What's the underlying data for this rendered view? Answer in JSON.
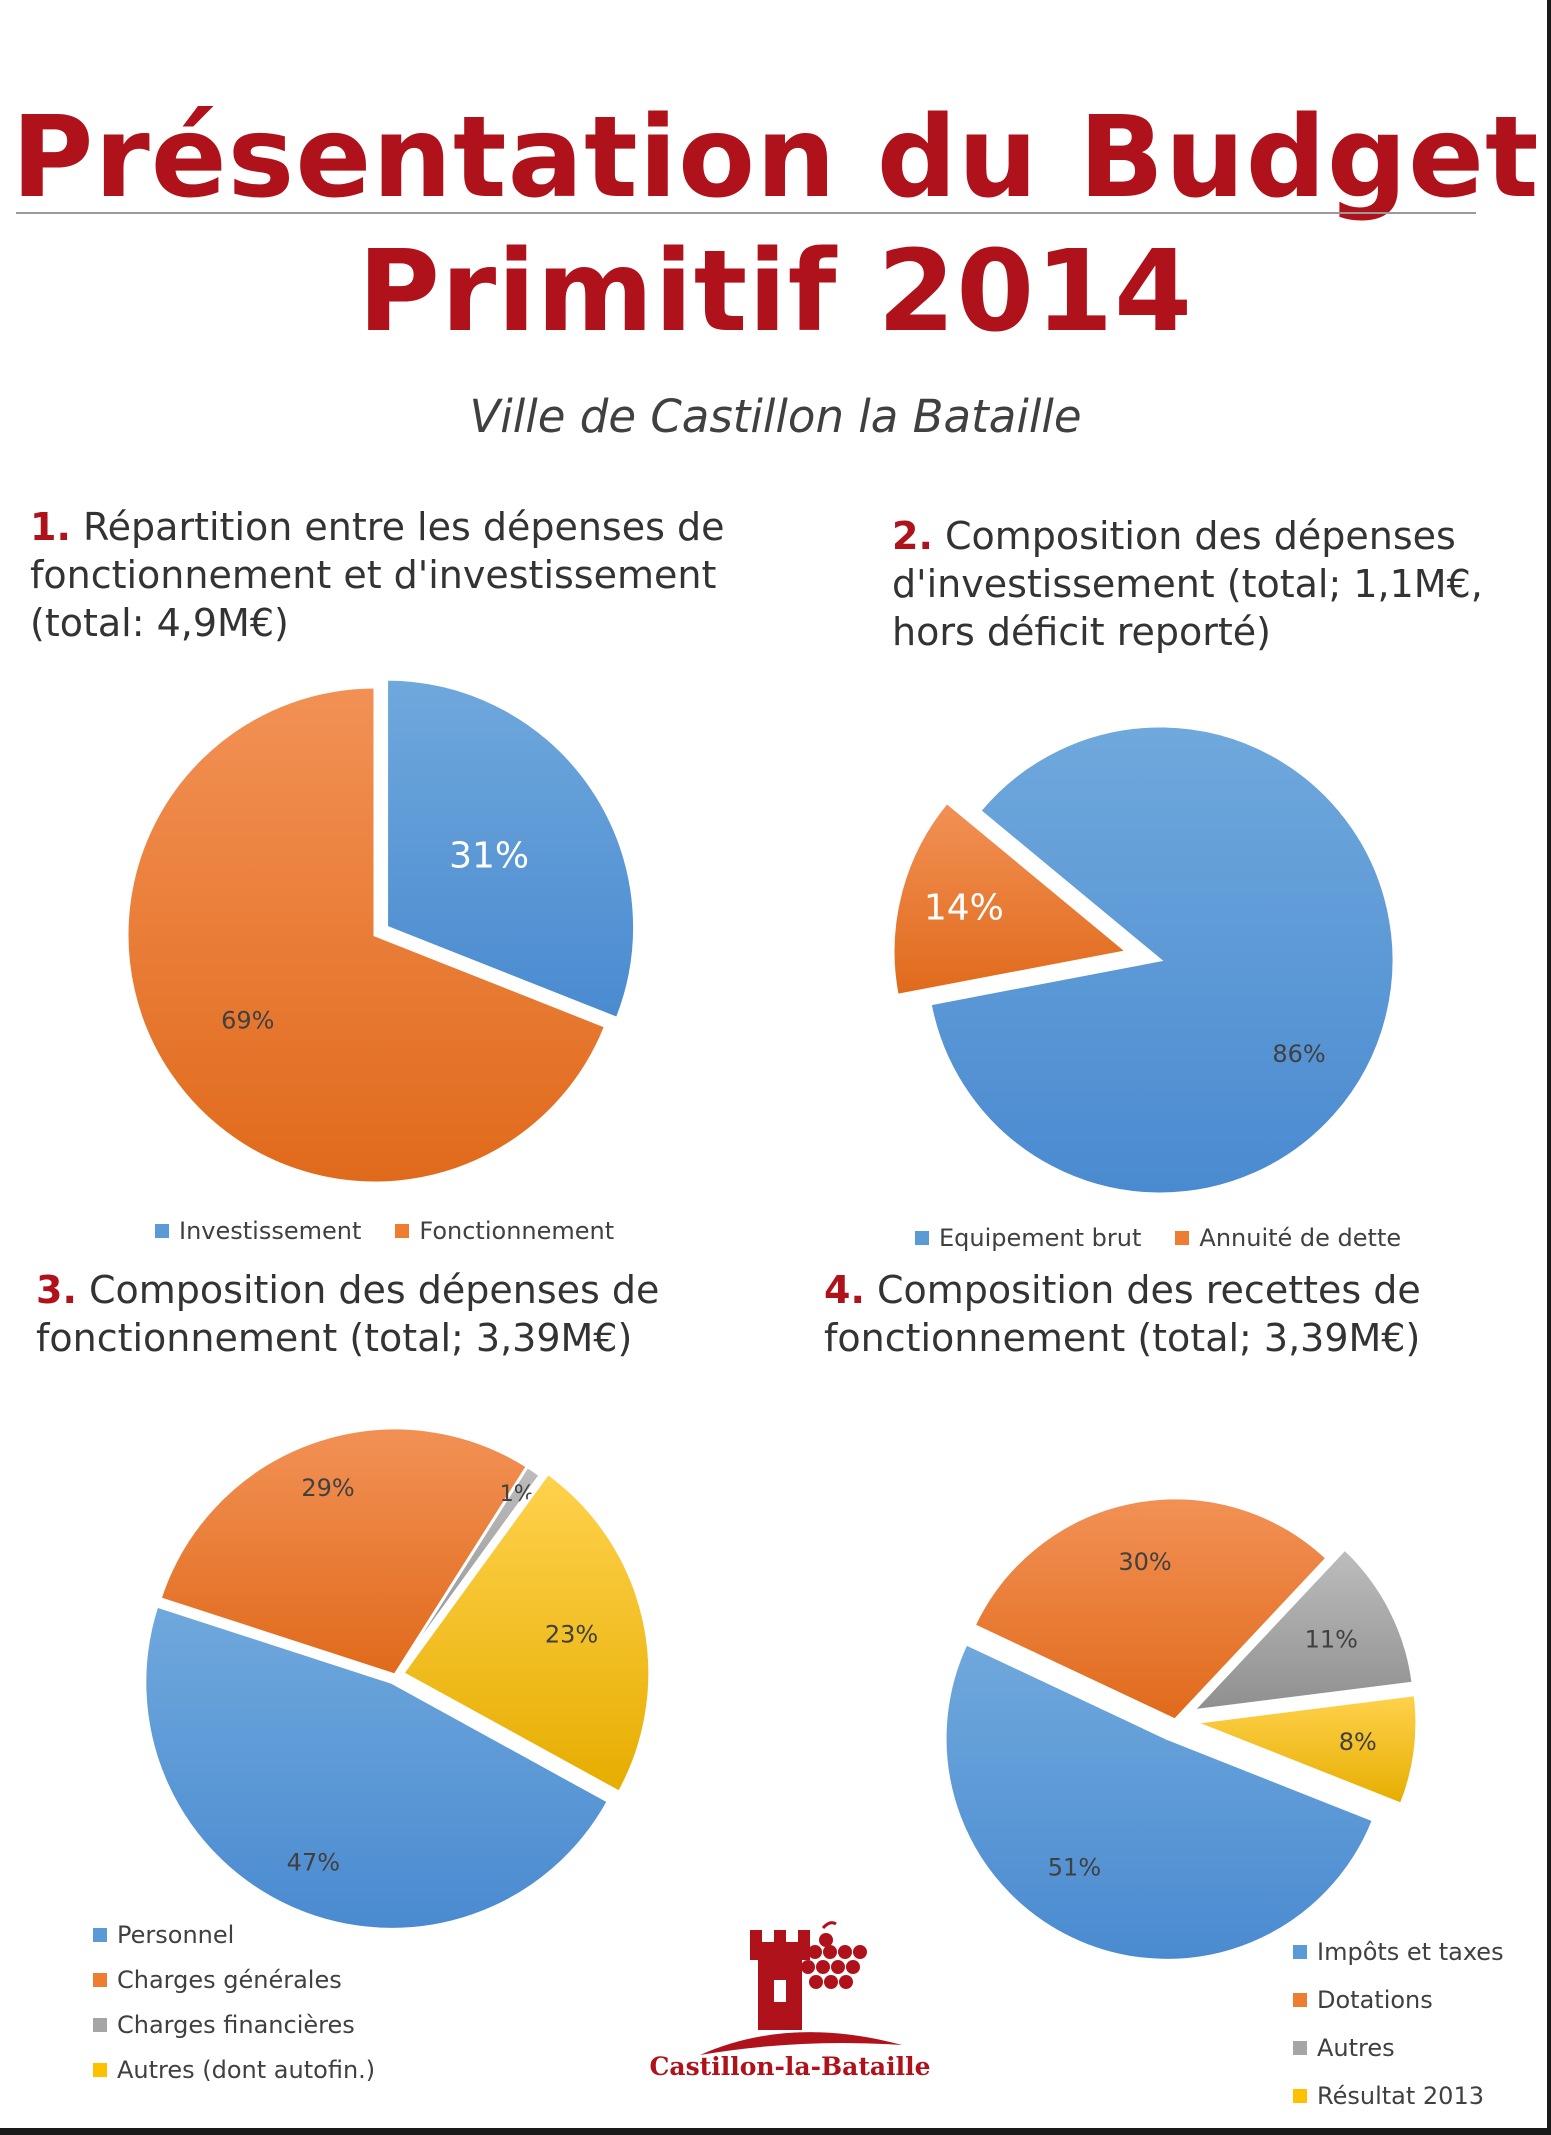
{
  "header": {
    "title_line1": "Présentation du Budget",
    "title_line2": "Primitif 2014",
    "subtitle": "Ville de Castillon la Bataille"
  },
  "logo": {
    "text": "Castillon-la-Bataille"
  },
  "colors": {
    "title": "#b0121b",
    "blue": "#5b9bd5",
    "orange": "#ed7d31",
    "gray": "#a5a5a5",
    "yellow": "#ffc000"
  },
  "chart_data": [
    {
      "type": "pie",
      "number": "1.",
      "title_lines": [
        "Répartition entre les dépenses de",
        "fonctionnement et d'investissement",
        "(total: 4,9M€)"
      ],
      "categories": [
        "Investissement",
        "Fonctionnement"
      ],
      "values": [
        31,
        69
      ],
      "labels": [
        "31%",
        "69%"
      ],
      "exploded": [
        true,
        false
      ],
      "legend_position": "bottom"
    },
    {
      "type": "pie",
      "number": "2.",
      "title_lines": [
        "Composition des dépenses",
        "d'investissement (total; 1,1M€,",
        "hors déficit reporté)"
      ],
      "categories": [
        "Equipement brut",
        "Annuité de dette"
      ],
      "values": [
        86,
        14
      ],
      "labels": [
        "86%",
        "14%"
      ],
      "exploded": [
        false,
        true
      ],
      "legend_position": "bottom"
    },
    {
      "type": "pie",
      "number": "3.",
      "title_lines": [
        "Composition des dépenses de",
        "fonctionnement (total; 3,39M€)"
      ],
      "categories": [
        "Personnel",
        "Charges générales",
        "Charges financières",
        "Autres (dont autofin.)"
      ],
      "values": [
        47,
        29,
        1,
        23
      ],
      "labels": [
        "47%",
        "29%",
        "1%",
        "23%"
      ],
      "exploded": [
        true,
        false,
        false,
        true
      ],
      "legend_position": "bottom-left"
    },
    {
      "type": "pie",
      "number": "4.",
      "title_lines": [
        "Composition des recettes de",
        "fonctionnement (total; 3,39M€)"
      ],
      "categories": [
        "Impôts et taxes",
        "Dotations",
        "Autres",
        "Résultat 2013"
      ],
      "values": [
        51,
        30,
        11,
        8
      ],
      "labels": [
        "51%",
        "30%",
        "11%",
        "8%"
      ],
      "exploded": [
        true,
        false,
        true,
        true
      ],
      "legend_position": "bottom-right"
    }
  ]
}
